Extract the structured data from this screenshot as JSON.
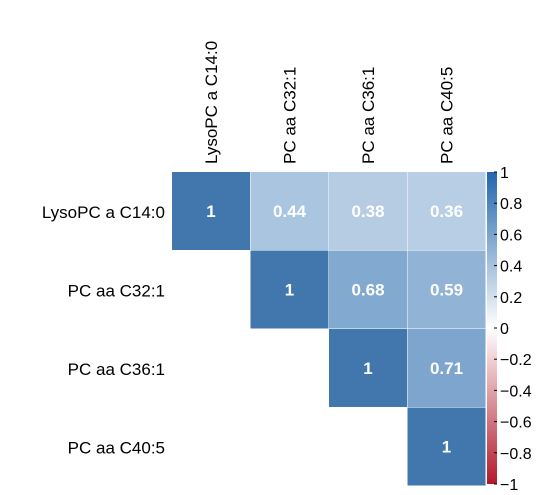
{
  "chart_data": {
    "type": "heatmap",
    "variant": "upper-triangular correlation matrix",
    "row_labels": [
      "LysoPC a C14:0",
      "PC aa C32:1",
      "PC aa C36:1",
      "PC aa C40:5"
    ],
    "col_labels": [
      "LysoPC a C14:0",
      "PC aa C32:1",
      "PC aa C36:1",
      "PC aa C40:5"
    ],
    "cells": [
      {
        "row": 0,
        "col": 0,
        "value": 1,
        "label": "1"
      },
      {
        "row": 0,
        "col": 1,
        "value": 0.44,
        "label": "0.44"
      },
      {
        "row": 0,
        "col": 2,
        "value": 0.38,
        "label": "0.38"
      },
      {
        "row": 0,
        "col": 3,
        "value": 0.36,
        "label": "0.36"
      },
      {
        "row": 1,
        "col": 1,
        "value": 1,
        "label": "1"
      },
      {
        "row": 1,
        "col": 2,
        "value": 0.68,
        "label": "0.68"
      },
      {
        "row": 1,
        "col": 3,
        "value": 0.59,
        "label": "0.59"
      },
      {
        "row": 2,
        "col": 2,
        "value": 1,
        "label": "1"
      },
      {
        "row": 2,
        "col": 3,
        "value": 0.71,
        "label": "0.71"
      },
      {
        "row": 3,
        "col": 3,
        "value": 1,
        "label": "1"
      }
    ],
    "colorbar": {
      "range": [
        -1,
        1
      ],
      "ticks": [
        1,
        0.8,
        0.6,
        0.4,
        0.2,
        0,
        -0.2,
        -0.4,
        -0.6,
        -0.8,
        -1
      ],
      "tick_labels": [
        "1",
        "0.8",
        "0.6",
        "0.4",
        "0.2",
        "0",
        "−0.2",
        "−0.4",
        "−0.6",
        "−0.8",
        "−1"
      ],
      "colors": {
        "negative": "#b2182b",
        "zero": "#ffffff",
        "positive": "#2166ac"
      }
    },
    "value_label_color": "#ffffff",
    "grid": false
  }
}
